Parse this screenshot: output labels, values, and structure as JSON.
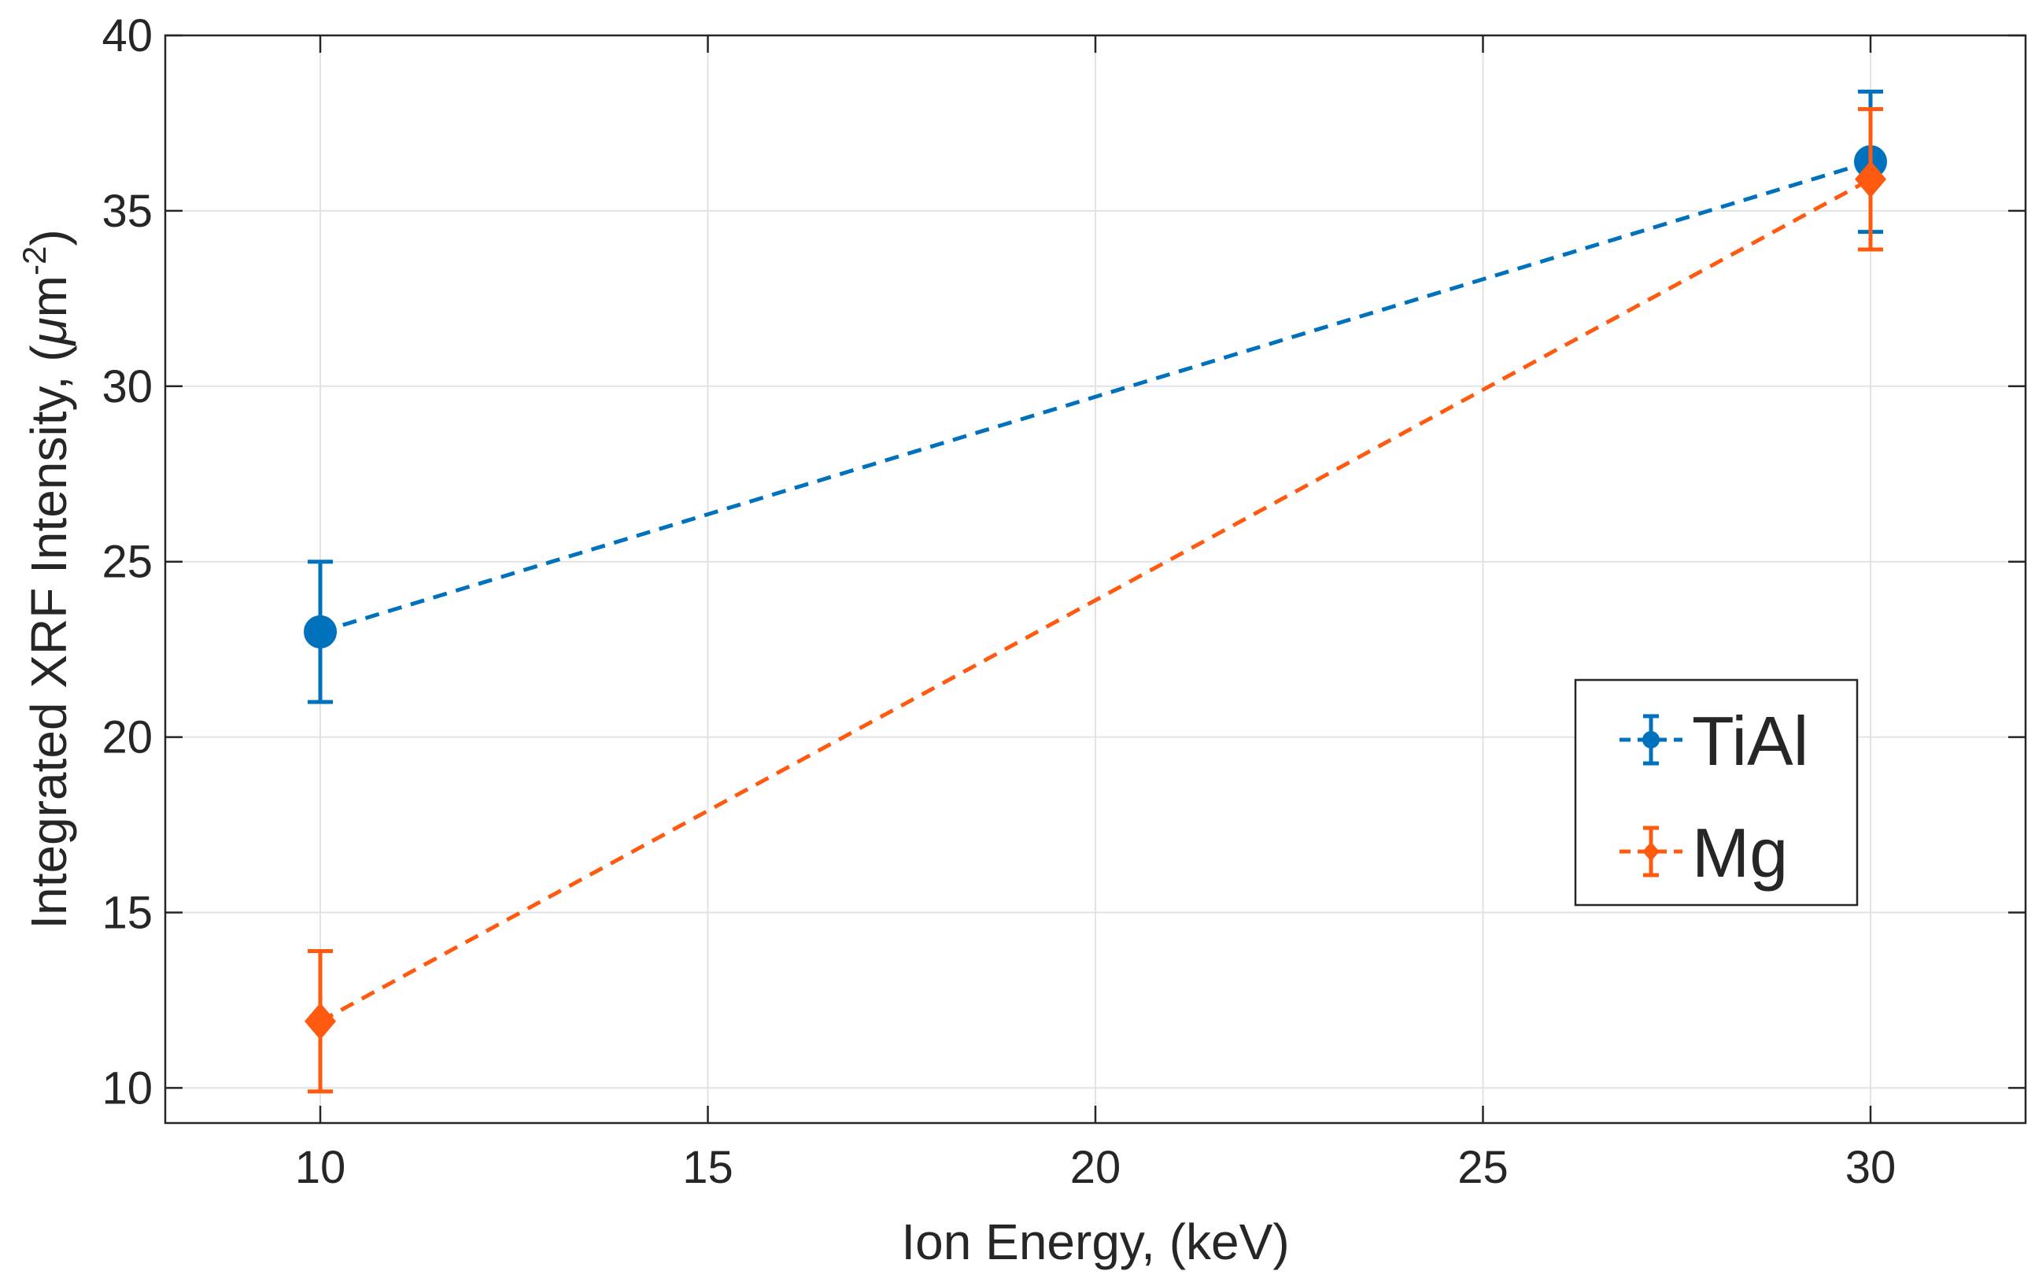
{
  "chart_data": {
    "type": "scatter",
    "xlabel": "Ion Energy, (keV)",
    "ylabel_main": "Integrated XRF Intensity, (",
    "ylabel_mu": "μ",
    "ylabel_m": "m",
    "ylabel_exp": "-2",
    "ylabel_close": ")",
    "xlim": [
      8,
      32
    ],
    "ylim": [
      9,
      40
    ],
    "xticks": [
      10,
      15,
      20,
      25,
      30
    ],
    "yticks": [
      10,
      15,
      20,
      25,
      30,
      35,
      40
    ],
    "grid": true,
    "legend_position": "right",
    "series": [
      {
        "name": "TiAl",
        "color": "#0072BD",
        "marker": "circle",
        "line_style": "dashed",
        "x": [
          10,
          30
        ],
        "y": [
          23,
          36.4
        ],
        "err": [
          2,
          2
        ]
      },
      {
        "name": "Mg",
        "color": "#FF5A0F",
        "marker": "diamond",
        "line_style": "dashed",
        "x": [
          10,
          30
        ],
        "y": [
          11.9,
          35.9
        ],
        "err": [
          2,
          2
        ]
      }
    ]
  }
}
